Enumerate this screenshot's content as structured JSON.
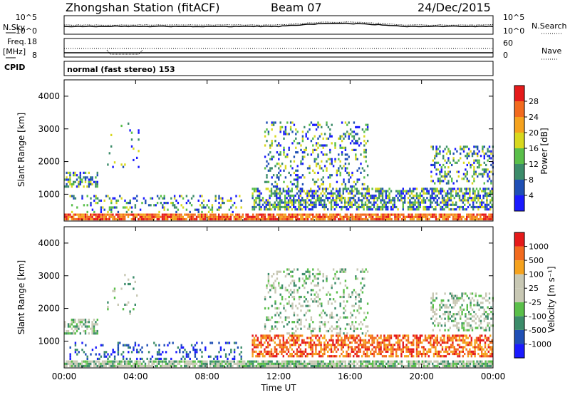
{
  "header": {
    "station": "Zhongshan Station (fitACF)",
    "beam": "Beam 07",
    "date": "24/Dec/2015"
  },
  "summary": {
    "left_labels": {
      "nsky": "N.Sky",
      "freq": "Freq.",
      "freq_unit": "[MHz]",
      "cpid": "CPID"
    },
    "right_labels": {
      "nsearch": "N.Search",
      "nave": "Nave"
    },
    "noise_scale_left": [
      "10^5",
      "10^0"
    ],
    "noise_scale_right": [
      "10^5",
      "10^0"
    ],
    "freq_scale": [
      "18",
      "8"
    ],
    "nave_scale": [
      "60",
      "0"
    ],
    "cpid_text": "normal (fast stereo) 153"
  },
  "colors": {
    "power": [
      "#1a1aff",
      "#1f4fb5",
      "#3c8c6a",
      "#5abf4a",
      "#d8d81e",
      "#f5a21e",
      "#f26a1e",
      "#e51a1a"
    ],
    "velocity": [
      "#e51a1a",
      "#f26a1e",
      "#f5a21e",
      "#c8c8b4",
      "#c8c8b4",
      "#5abf4a",
      "#3c8c6a",
      "#1f4fb5",
      "#1a1aff"
    ]
  },
  "chart_data": [
    {
      "type": "heatmap",
      "name": "power",
      "ylabel": "Slant Range [km]",
      "xlabel": "",
      "ylim": [
        180,
        4500
      ],
      "yticks": [
        "1000",
        "2000",
        "3000",
        "4000"
      ],
      "xticks": [
        "00:00",
        "04:00",
        "08:00",
        "12:00",
        "16:00",
        "20:00",
        "00:00"
      ],
      "colorbar_label": "Power [dB]",
      "colorbar_ticks": [
        "4",
        "8",
        "12",
        "16",
        "20",
        "24",
        "28"
      ]
    },
    {
      "type": "heatmap",
      "name": "velocity",
      "ylabel": "Slant Range [km]",
      "xlabel": "Time UT",
      "ylim": [
        180,
        4500
      ],
      "yticks": [
        "1000",
        "2000",
        "3000",
        "4000"
      ],
      "xticks": [
        "00:00",
        "04:00",
        "08:00",
        "12:00",
        "16:00",
        "20:00",
        "00:00"
      ],
      "colorbar_label": "Velocity [m s⁻¹]",
      "colorbar_ticks": [
        "1000",
        "500",
        "100",
        "25",
        "-25",
        "-100",
        "-500",
        "-1000"
      ]
    }
  ]
}
